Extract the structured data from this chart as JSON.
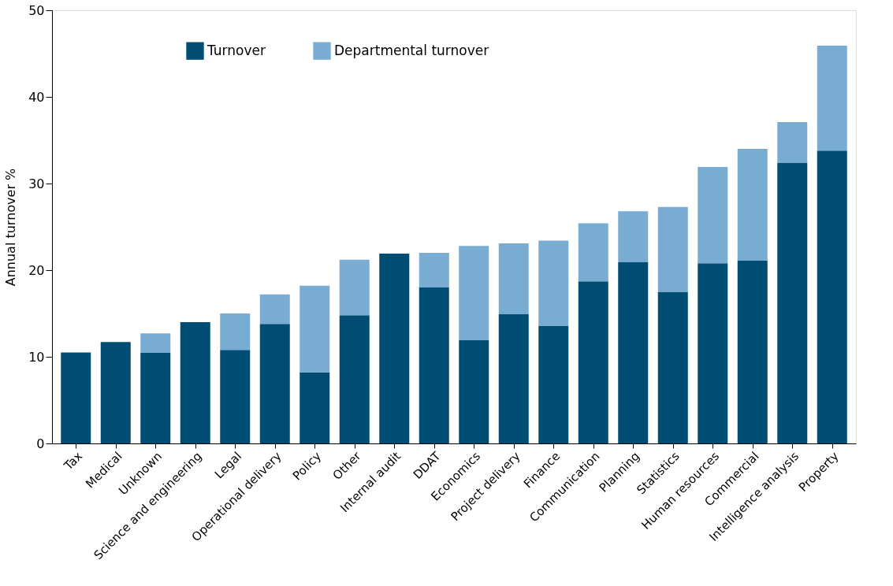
{
  "chart_data": {
    "type": "bar",
    "stacked": true,
    "ylabel": "Annual turnover %",
    "categories": [
      "Tax",
      "Medical",
      "Unknown",
      "Science and engineering",
      "Legal",
      "Operational delivery",
      "Policy",
      "Other",
      "Internal audit",
      "DDAT",
      "Economics",
      "Project delivery",
      "Finance",
      "Communication",
      "Planning",
      "Statistics",
      "Human resources",
      "Commercial",
      "Intelligence analysis",
      "Property"
    ],
    "series": [
      {
        "name": "Turnover",
        "color": "#004d73",
        "values": [
          10.5,
          11.7,
          10.5,
          14.0,
          10.8,
          13.8,
          8.2,
          14.8,
          21.9,
          18.0,
          11.9,
          14.9,
          13.6,
          18.7,
          20.9,
          17.5,
          20.8,
          21.1,
          32.4,
          33.8
        ]
      },
      {
        "name": "Departmental turnover",
        "color": "#78acd3",
        "values": [
          null,
          null,
          2.2,
          null,
          4.2,
          3.4,
          10.0,
          6.4,
          null,
          4.0,
          10.9,
          8.2,
          9.8,
          6.7,
          5.9,
          9.8,
          11.1,
          12.9,
          4.7,
          12.1
        ]
      }
    ],
    "ylim": [
      0,
      50
    ],
    "yticks": [
      0,
      10,
      20,
      30,
      40,
      50
    ],
    "grid": false,
    "legend": "top left"
  }
}
